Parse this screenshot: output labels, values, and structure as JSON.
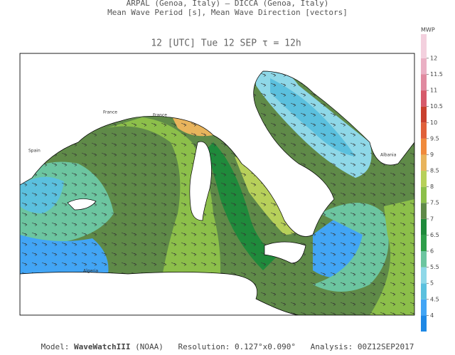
{
  "header": {
    "line1": "ARPAL (Genoa, Italy)  –  DICCA (Genoa, Italy)",
    "line2": "Mean Wave Period [s], Mean Wave Direction [vectors]",
    "timestamp": "12 [UTC] Tue 12 SEP  τ = 12h"
  },
  "colorbar": {
    "label": "MWP",
    "lim": [
      3.5,
      12.75
    ],
    "ticks": [
      4,
      4.5,
      5,
      5.5,
      6,
      6.5,
      7,
      7.5,
      8,
      8.5,
      9,
      9.5,
      10,
      10.5,
      11,
      11.5,
      12
    ],
    "colors": [
      "#1e88e5",
      "#42a5f5",
      "#5bc0de",
      "#8fd8e8",
      "#6cc5a0",
      "#2e9e4a",
      "#1f8a3b",
      "#5f8a48",
      "#8cbf4a",
      "#b7d05a",
      "#e8b45c",
      "#f08a3c",
      "#e0603a",
      "#c8402e",
      "#d65a6a",
      "#e08aa0",
      "#eab0c4",
      "#f3d0de"
    ]
  },
  "map": {
    "labels": [
      "France",
      "France",
      "Spain",
      "Algeria",
      "Albania"
    ]
  },
  "footer": {
    "model_label": "Model:",
    "model": "WaveWatchIII",
    "model_source": "(NOAA)",
    "resolution": "Resolution: 0.127°x0.090°",
    "analysis": "Analysis: 00Z12SEP2017"
  }
}
